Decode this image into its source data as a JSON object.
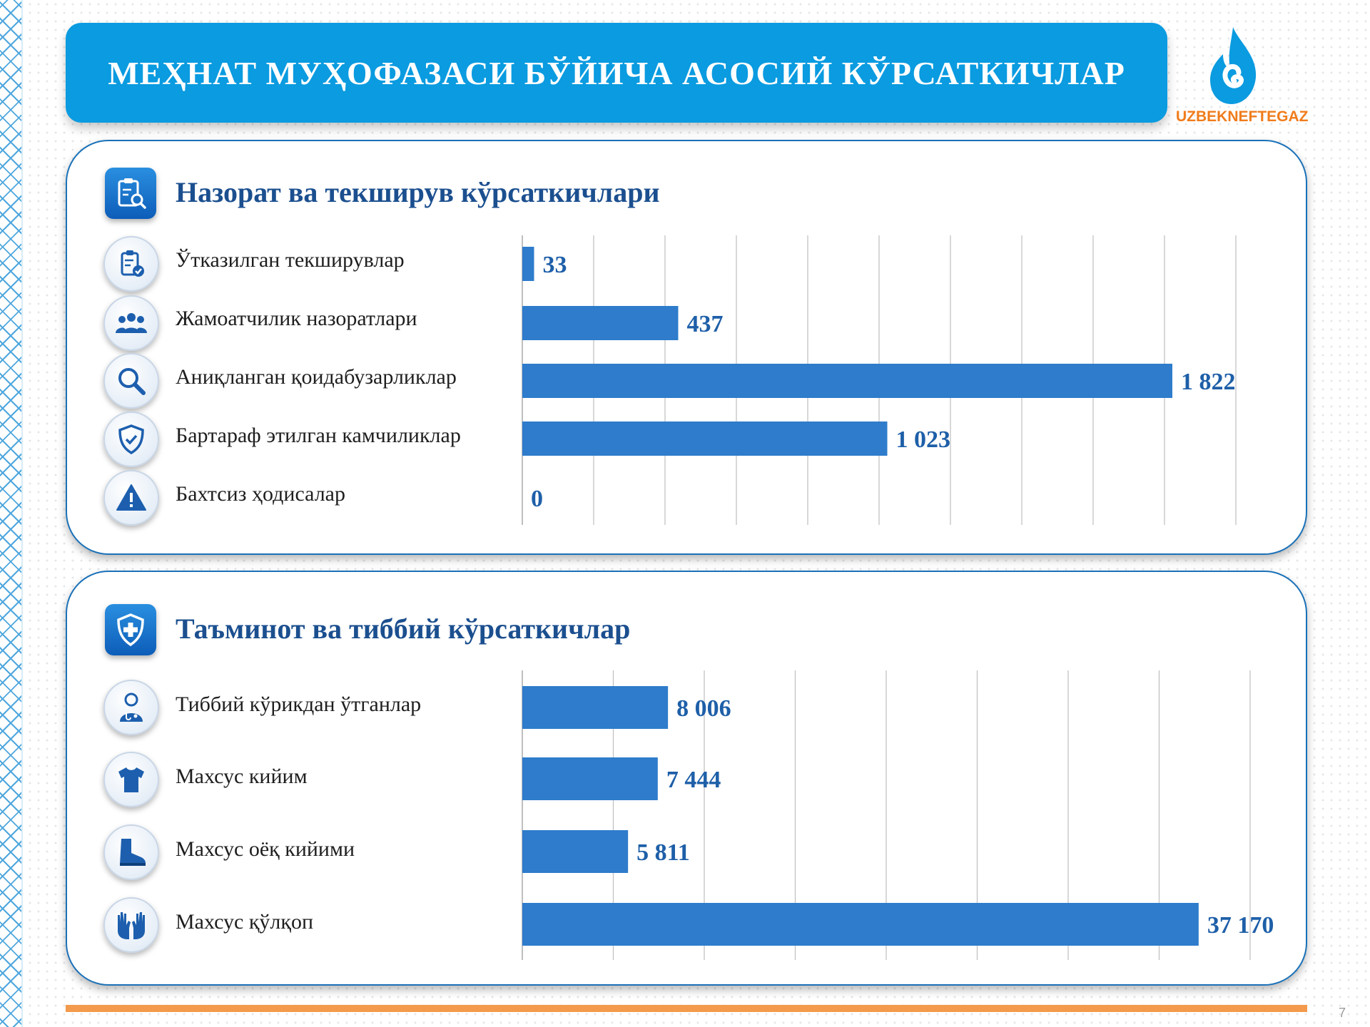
{
  "title": "МЕҲНАТ МУҲОФАЗАСИ БЎЙИЧА АСОСИЙ КЎРСАТКИЧЛАР",
  "logo": {
    "text": "UZBEKNEFTEGAZ",
    "accent": "#0a9be0",
    "text_color": "#f07c1b"
  },
  "page_number": "7",
  "colors": {
    "bar": "#2e7ccb",
    "value": "#1e5fa8",
    "banner": "#0a9be0",
    "panel_border": "#1a71b8",
    "footer": "#f39a4c"
  },
  "sections": [
    {
      "title": "Назорат ва текширув кўрсаткичлари",
      "icon": "clipboard-search-icon",
      "rows": [
        {
          "label": "Ўтказилган текширувлар",
          "icon": "clipboard-check-icon"
        },
        {
          "label": "Жамоатчилик назоратлари",
          "icon": "people-group-icon"
        },
        {
          "label": "Аниқланган қоидабузарликлар",
          "icon": "magnifier-icon"
        },
        {
          "label": "Бартараф этилган камчиликлар",
          "icon": "shield-check-icon"
        },
        {
          "label": "Бахтсиз ҳодисалар",
          "icon": "warning-triangle-icon"
        }
      ]
    },
    {
      "title": "Таъминот ва тиббий кўрсаткичлар",
      "icon": "shield-plus-icon",
      "rows": [
        {
          "label": "Тиббий кўрикдан ўтганлар",
          "icon": "doctor-icon"
        },
        {
          "label": "Махсус кийим",
          "icon": "tshirt-icon"
        },
        {
          "label": "Махсус оёқ кийими",
          "icon": "boot-icon"
        },
        {
          "label": "Махсус қўлқоп",
          "icon": "gloves-icon"
        }
      ]
    }
  ],
  "chart_data": [
    {
      "type": "bar",
      "orientation": "horizontal",
      "title": "Назорат ва текширув кўрсаткичлари",
      "categories": [
        "Ўтказилган текширувлар",
        "Жамоатчилик назоратлари",
        "Аниқланган қоидабузарликлар",
        "Бартараф этилган камчиликлар",
        "Бахтсиз ҳодисалар"
      ],
      "values": [
        33,
        437,
        1822,
        1023,
        0
      ],
      "value_labels": [
        "33",
        "437",
        "1 822",
        "1 023",
        "0"
      ],
      "xlim": [
        0,
        2000
      ],
      "grid": true
    },
    {
      "type": "bar",
      "orientation": "horizontal",
      "title": "Таъминот ва тиббий кўрсаткичлар",
      "categories": [
        "Тиббий кўрикдан ўтганлар",
        "Махсус кийим",
        "Махсус оёқ кийими",
        "Махсус қўлқоп"
      ],
      "values": [
        8006,
        7444,
        5811,
        37170
      ],
      "value_labels": [
        "8 006",
        "7 444",
        "5 811",
        "37 170"
      ],
      "xlim": [
        0,
        40000
      ],
      "grid": true
    }
  ]
}
